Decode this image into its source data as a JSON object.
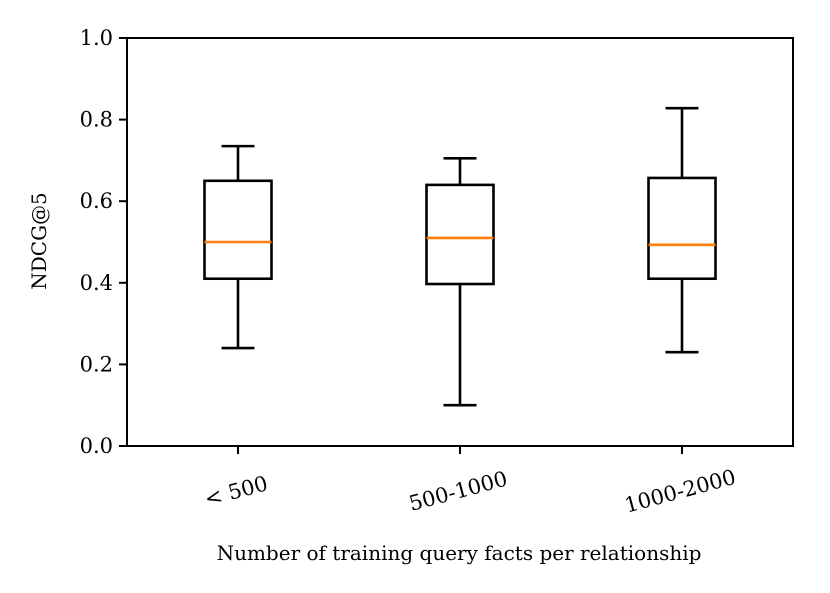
{
  "chart_data": {
    "type": "boxplot",
    "title": "",
    "xlabel": "Number of training query facts per relationship",
    "ylabel": "NDCG@5",
    "ylim": [
      0.0,
      1.0
    ],
    "yticks": [
      "0.0",
      "0.2",
      "0.4",
      "0.6",
      "0.8",
      "1.0"
    ],
    "categories": [
      "< 500",
      "500-1000",
      "1000-2000"
    ],
    "grid": false,
    "legend": "none",
    "boxes": [
      {
        "category": "< 500",
        "whisker_low": 0.24,
        "q1": 0.41,
        "median": 0.5,
        "q3": 0.65,
        "whisker_high": 0.735
      },
      {
        "category": "500-1000",
        "whisker_low": 0.1,
        "q1": 0.397,
        "median": 0.51,
        "q3": 0.64,
        "whisker_high": 0.705
      },
      {
        "category": "1000-2000",
        "whisker_low": 0.23,
        "q1": 0.41,
        "median": 0.493,
        "q3": 0.657,
        "whisker_high": 0.828
      }
    ],
    "colors": {
      "box": "#000000",
      "median": "#ff7f0e"
    }
  }
}
